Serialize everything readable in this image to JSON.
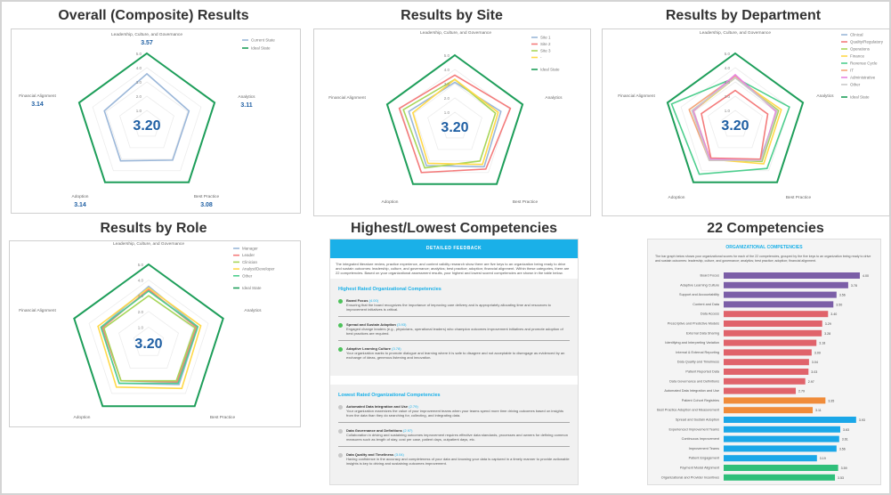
{
  "axes": [
    "Leadership, Culture, and Governance",
    "Analytics",
    "Best Practice",
    "Adoption",
    "Financial Alignment"
  ],
  "colors": {
    "ideal": "#1e9e5a",
    "score": "#1f5fa3",
    "accent": "#1ab0e8"
  },
  "chart_data": [
    {
      "type": "radar",
      "title": "Overall (Composite) Results",
      "center_label": "3.20",
      "range": [
        0,
        5
      ],
      "ticks": [
        "1.0",
        "2.0",
        "3.0",
        "4.0",
        "5.0"
      ],
      "axis_values": [
        "3.57",
        "3.11",
        "3.08",
        "3.14",
        "3.14"
      ],
      "series": [
        {
          "name": "Current State",
          "color": "#9bb7d9",
          "values": [
            3.57,
            3.11,
            3.08,
            3.14,
            3.14
          ]
        },
        {
          "name": "Ideal State",
          "color": "#1e9e5a",
          "values": [
            5,
            5,
            5,
            5,
            5
          ]
        }
      ]
    },
    {
      "type": "radar",
      "title": "Results by Site",
      "center_label": "3.20",
      "range": [
        0,
        5
      ],
      "ticks": [
        "1.0",
        "2.0",
        "3.0",
        "4.0",
        "5.0"
      ],
      "series": [
        {
          "name": "Site 1",
          "color": "#9bb7d9",
          "values": [
            3.1,
            3.4,
            3.5,
            3.4,
            3.4
          ]
        },
        {
          "name": "Site 2",
          "color": "#f47c7c",
          "values": [
            3.6,
            4.1,
            3.7,
            4.0,
            4.1
          ]
        },
        {
          "name": "Site 3",
          "color": "#a8d65a",
          "values": [
            3.3,
            3.0,
            3.0,
            3.6,
            3.8
          ]
        },
        {
          "name": "-",
          "color": "#ffd94a",
          "values": [
            3.3,
            3.2,
            3.3,
            3.2,
            3.1
          ]
        },
        {
          "name": "Ideal State",
          "color": "#1e9e5a",
          "values": [
            5,
            5,
            5,
            5,
            5
          ]
        }
      ]
    },
    {
      "type": "radar",
      "title": "Results by Department",
      "center_label": "3.20",
      "range": [
        0,
        5
      ],
      "ticks": [
        "1.0",
        "2.0",
        "3.0",
        "4.0",
        "5.0"
      ],
      "series": [
        {
          "name": "Clinical",
          "color": "#9bb7d9",
          "values": [
            3.3,
            3.1,
            3.0,
            3.0,
            3.1
          ]
        },
        {
          "name": "Quality/Regulatory",
          "color": "#f47c7c",
          "values": [
            2.4,
            2.4,
            3.0,
            2.9,
            2.5
          ]
        },
        {
          "name": "Operations",
          "color": "#a8d65a",
          "values": [
            3.3,
            3.2,
            3.2,
            3.0,
            3.1
          ]
        },
        {
          "name": "Finance",
          "color": "#ffd94a",
          "values": [
            3.3,
            3.4,
            3.4,
            3.0,
            3.1
          ]
        },
        {
          "name": "Revenue Cycle",
          "color": "#4fcf8f",
          "values": [
            3.3,
            4.0,
            3.8,
            4.3,
            4.7
          ]
        },
        {
          "name": "IT",
          "color": "#f5a77a",
          "values": [
            3.4,
            3.1,
            3.1,
            3.1,
            3.4
          ]
        },
        {
          "name": "Administrative",
          "color": "#e884e0",
          "values": [
            3.5,
            3.0,
            3.1,
            3.0,
            3.1
          ]
        },
        {
          "name": "Other",
          "color": "#c9c9c9",
          "values": [
            3.3,
            3.1,
            3.1,
            3.1,
            3.2
          ]
        },
        {
          "name": "Ideal State",
          "color": "#1e9e5a",
          "values": [
            5,
            5,
            5,
            5,
            5
          ]
        }
      ]
    },
    {
      "type": "radar",
      "title": "Results by Role",
      "center_label": "3.20",
      "range": [
        0,
        5
      ],
      "ticks": [
        "1.0",
        "2.0",
        "3.0",
        "4.0",
        "5.0"
      ],
      "series": [
        {
          "name": "Manager",
          "color": "#9bb7d9",
          "values": [
            3.6,
            3.3,
            3.3,
            3.2,
            3.2
          ]
        },
        {
          "name": "Leader",
          "color": "#f47c7c",
          "values": [
            3.4,
            3.2,
            3.1,
            3.0,
            3.1
          ]
        },
        {
          "name": "Clinician",
          "color": "#a8d65a",
          "values": [
            3.0,
            3.1,
            3.0,
            3.0,
            3.0
          ]
        },
        {
          "name": "Analyst/Developer",
          "color": "#ffd94a",
          "values": [
            3.5,
            3.5,
            3.6,
            3.5,
            3.4
          ]
        },
        {
          "name": "Other",
          "color": "#4fcf8f",
          "values": [
            3.3,
            3.3,
            3.2,
            3.2,
            3.2
          ]
        },
        {
          "name": "Ideal State",
          "color": "#1e9e5a",
          "values": [
            5,
            5,
            5,
            5,
            5
          ]
        }
      ]
    },
    {
      "type": "bar",
      "orientation": "horizontal",
      "title": "22 Competencies",
      "header": "ORGANIZATIONAL COMPETENCIES",
      "description": "The bar graph below shows your organizational scores for each of the 22 competencies, grouped by the five keys to an organization being ready to drive and sustain outcomes: leadership, culture, and governance; analytics; best practice; adoption; financial alignment.",
      "categories": [
        "Board Focus",
        "Adaptive Learning Culture",
        "Support and Accountability",
        "Content and Data",
        "Data Access",
        "Prescriptive and Predictive Models",
        "External Data Sharing",
        "Identifying and Interpreting Variation",
        "Internal & External Reporting",
        "Data Quality and Timeliness",
        "Patient Reported Data",
        "Data Governance and Definitions",
        "Automated Data Integration and Use",
        "Patient Cohort Registries",
        "Best Practice Adoption and Measurement",
        "Spread and Sustain Adoption",
        "Experienced Improvement Teams",
        "Continuous Improvement",
        "Improvement Teams",
        "Patient Engagement",
        "Payment Model Alignment",
        "Organizational and Provider Incentives"
      ],
      "values": [
        4.0,
        3.78,
        3.56,
        3.5,
        3.4,
        3.29,
        3.28,
        3.18,
        3.09,
        3.04,
        3.03,
        2.97,
        2.79,
        3.35,
        3.11,
        3.93,
        3.63,
        3.61,
        3.56,
        3.19,
        3.59,
        3.53
      ],
      "labels": [
        "4.00",
        "3.78",
        "3.56",
        "3.50",
        "3.40",
        "3.29",
        "3.28",
        "3.18",
        "3.09",
        "3.04",
        "3.03",
        "2.97",
        "2.79",
        "3.35",
        "3.11",
        "3.93",
        "3.63",
        "3.61",
        "3.56",
        "3.19",
        "3.59",
        "3.53"
      ],
      "groups": [
        {
          "color": "#7b5ea7",
          "count": 4
        },
        {
          "color": "#e0636b",
          "count": 9
        },
        {
          "color": "#f08c3a",
          "count": 2
        },
        {
          "color": "#1aa7e8",
          "count": 5
        },
        {
          "color": "#2fbf7a",
          "count": 2
        }
      ]
    }
  ],
  "feedback": {
    "title": "Highest/Lowest Competencies",
    "header": "DETAILED FEEDBACK",
    "intro": "The integrated literature review, practice experience, and content validity research show there are five keys to an organization being ready to drive and sustain outcomes: leadership, culture, and governance; analytics; best practice; adoption; financial alignment. Within these categories, there are 22 competencies. Based on your organizational assessment results, your highest and lowest scored competencies are shown in the table below.",
    "highest_title": "Highest Rated Organizational Competencies",
    "highest": [
      {
        "name": "Board Focus",
        "score": "(4.00)",
        "text": "Ensuring that the board recognizes the importance of improving care delivery and is appropriately allocating time and resources to improvement initiatives is critical."
      },
      {
        "name": "Spread and Sustain Adoption",
        "score": "(3.93)",
        "text": "Engaged change leaders (e.g., physicians, operational leaders) who champion outcomes improvement initiatives and promote adoption of best practices are required."
      },
      {
        "name": "Adaptive Learning Culture",
        "score": "(3.78)",
        "text": "Your organization wants to promote dialogue and learning where it is safe to disagree and not acceptable to disengage as evidenced by an exchange of ideas, generous listening and innovation."
      }
    ],
    "lowest_title": "Lowest Rated Organizational Competencies",
    "lowest": [
      {
        "name": "Automated Data Integration and Use",
        "score": "(2.79)",
        "text": "Your organization maximizes the value of your improvement teams when your teams spend more time driving outcomes based on insights from the data than they do searching for, collecting, and integrating data."
      },
      {
        "name": "Data Governance and Definitions",
        "score": "(2.97)",
        "text": "Collaboration in driving and sustaining outcomes improvement requires effective data standards, processes and owners for defining common measures such as length of stay, cost per case, patient days, outpatient days, etc."
      },
      {
        "name": "Data Quality and Timeliness",
        "score": "(3.04)",
        "text": "Having confidence in the accuracy and completeness of your data and knowing your data is captured in a timely manner to provide actionable insights is key to driving and sustaining outcomes improvement."
      }
    ]
  }
}
